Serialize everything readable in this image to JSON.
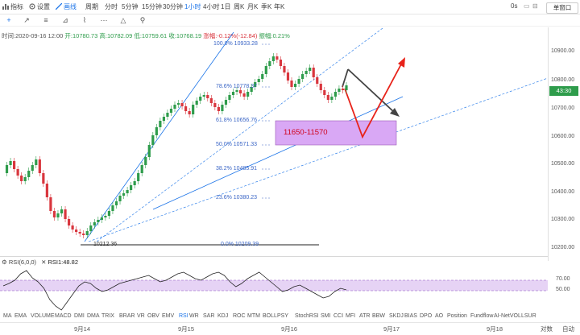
{
  "toolbar": {
    "items": [
      {
        "label": "指标",
        "icon": "indicator-icon"
      },
      {
        "label": "设置",
        "icon": "settings-icon"
      },
      {
        "label": "画线",
        "icon": "drawline-icon",
        "active": true
      }
    ],
    "periods": [
      "周期",
      "分时",
      "5分钟",
      "15分钟",
      "30分钟",
      "1小时",
      "4小时",
      "1日",
      "周K",
      "月K",
      "季K",
      "年K"
    ],
    "active_period": "1小时",
    "right_status": "0s",
    "window_controls": [
      "▭",
      "⊟",
      "⤢",
      "⚟"
    ],
    "stock_select": "单窗口"
  },
  "draw_tools": [
    "+",
    "↗",
    "≡",
    "⊿",
    "⌇",
    "⋯",
    "△",
    "⚲"
  ],
  "ohlc": {
    "time": "时间:2020-09-16 12:00",
    "open": "开:10780.73",
    "high": "高:10782.09",
    "low": "低:10759.61",
    "close": "收:10768.19",
    "change": "涨幅:-0.12%(-12.84)",
    "amplitude": "振幅:0.21%"
  },
  "yaxis": {
    "ticks": [
      "10900.00",
      "10800.00",
      "10700.00",
      "10600.00",
      "10500.00",
      "10400.00",
      "10300.00",
      "10200.00"
    ],
    "current_price": "43:30"
  },
  "fib_levels": [
    {
      "label": "100.0% 10933.28"
    },
    {
      "label": "78.6% 10778.37"
    },
    {
      "label": "61.8% 10656.76"
    },
    {
      "label": "50.0% 10571.33"
    },
    {
      "label": "38.2% 10485.91"
    },
    {
      "label": "23.6% 10380.23"
    },
    {
      "label": "0.0% 10209.39"
    }
  ],
  "low_label": "10212.36",
  "zone_label": "11650-11570",
  "rsi": {
    "header": "RSI(6,0,0)",
    "value": "RSI1:48.82",
    "ticks": [
      "70.00",
      "50.00"
    ]
  },
  "indicators": [
    "MA",
    "EMA",
    "VOLUME",
    "MACD",
    "DMI",
    "DMA",
    "TRIX",
    "BRAR",
    "VR",
    "OBV",
    "EMV",
    "RSI",
    "WR",
    "SAR",
    "KDJ",
    "ROC",
    "MTM",
    "BOLL",
    "PSY",
    "StochRSI",
    "SMI",
    "CCI",
    "MFI",
    "ATR",
    "BBW",
    "SKDJ",
    "BIAS",
    "DPO",
    "AO",
    "Position",
    "Fundflow",
    "AI-NetVOL",
    "LSUR"
  ],
  "active_indicator": "RSI",
  "xaxis": {
    "ticks": [
      "9月14",
      "9月15",
      "9月16",
      "9月17",
      "9月18"
    ],
    "right_labels": [
      "对数",
      "自动"
    ]
  },
  "colors": {
    "up": "#2e9c4b",
    "down": "#d9363e",
    "accent": "#1a73e8",
    "zone": "#d9a8f5"
  }
}
